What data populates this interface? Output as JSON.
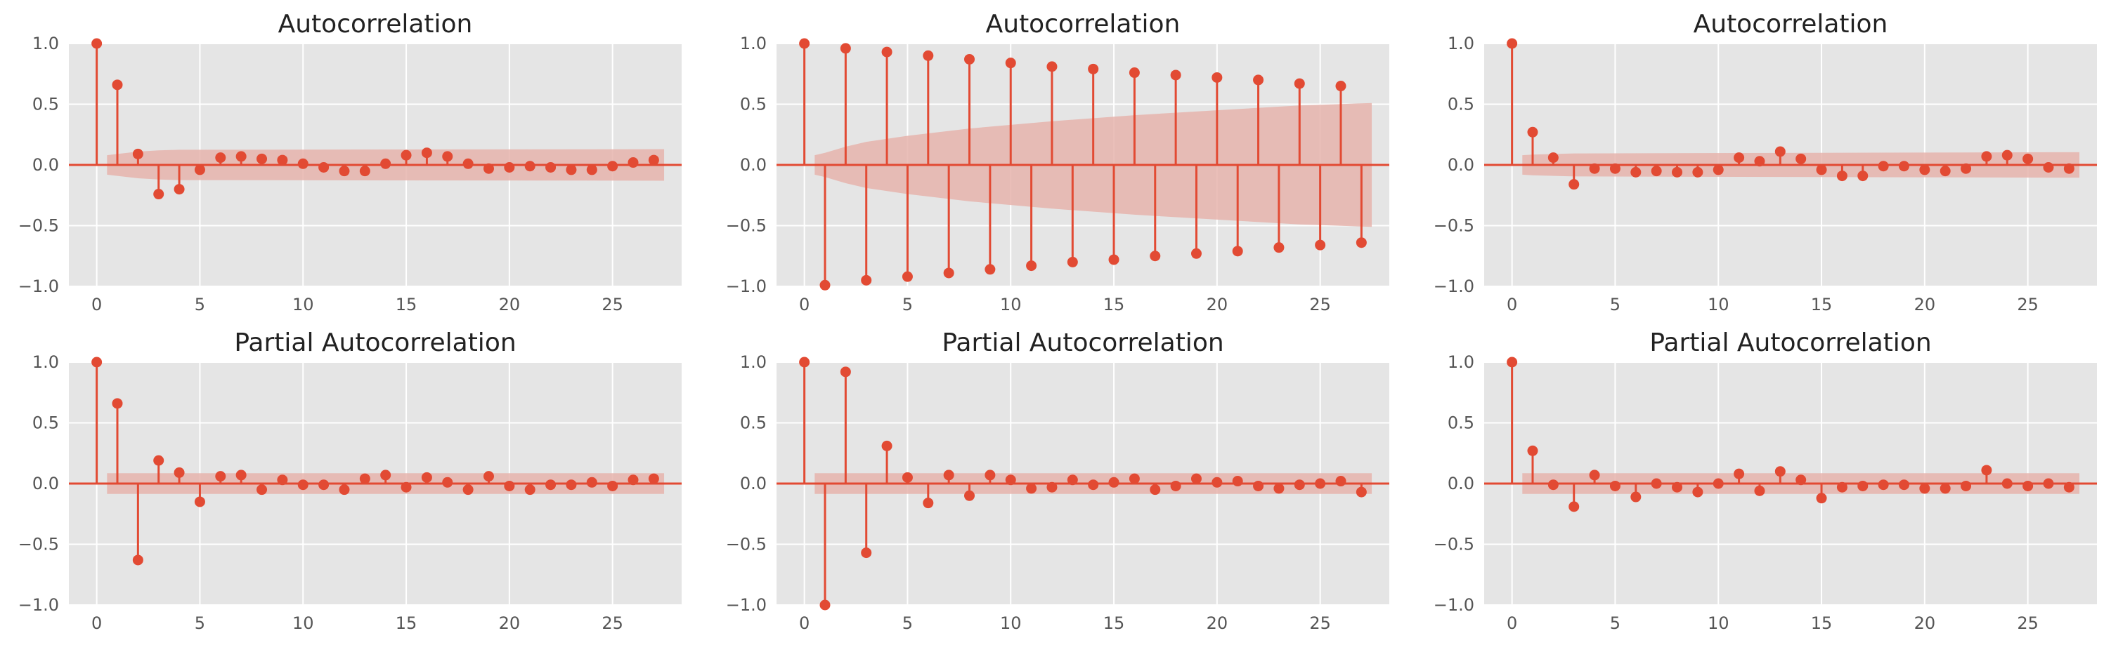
{
  "chart_data": [
    {
      "type": "stem",
      "title": "Autocorrelation",
      "xlabel": "",
      "ylabel": "",
      "xlim": [
        -1.35,
        28.35
      ],
      "ylim": [
        -1.0,
        1.0
      ],
      "xticks": [
        0,
        5,
        10,
        15,
        20,
        25
      ],
      "yticks": [
        -1.0,
        -0.5,
        0.0,
        0.5,
        1.0
      ],
      "ytick_labels": [
        "−1.0",
        "−0.5",
        "0.0",
        "0.5",
        "1.0"
      ],
      "grid": true,
      "lags": [
        0,
        1,
        2,
        3,
        4,
        5,
        6,
        7,
        8,
        9,
        10,
        11,
        12,
        13,
        14,
        15,
        16,
        17,
        18,
        19,
        20,
        21,
        22,
        23,
        24,
        25,
        26,
        27
      ],
      "values": [
        1.0,
        0.66,
        0.09,
        -0.24,
        -0.2,
        -0.04,
        0.06,
        0.07,
        0.05,
        0.04,
        0.01,
        -0.02,
        -0.05,
        -0.05,
        0.01,
        0.08,
        0.1,
        0.07,
        0.01,
        -0.03,
        -0.02,
        -0.01,
        -0.02,
        -0.04,
        -0.04,
        -0.01,
        0.02,
        0.04
      ],
      "confidence_band": {
        "lags": [
          0.5,
          1,
          2,
          3,
          4,
          27.5
        ],
        "upper": [
          0.08,
          0.09,
          0.11,
          0.12,
          0.125,
          0.13
        ]
      },
      "colors": {
        "stem": "#e24a33",
        "band": "#e6b4ad",
        "background": "#e5e5e5",
        "grid": "#ffffff",
        "zero_line": "#e24a33"
      }
    },
    {
      "type": "stem",
      "title": "Autocorrelation",
      "xlabel": "",
      "ylabel": "",
      "xlim": [
        -1.35,
        28.35
      ],
      "ylim": [
        -1.0,
        1.0
      ],
      "xticks": [
        0,
        5,
        10,
        15,
        20,
        25
      ],
      "yticks": [
        -1.0,
        -0.5,
        0.0,
        0.5,
        1.0
      ],
      "ytick_labels": [
        "−1.0",
        "−0.5",
        "0.0",
        "0.5",
        "1.0"
      ],
      "grid": true,
      "lags": [
        0,
        1,
        2,
        3,
        4,
        5,
        6,
        7,
        8,
        9,
        10,
        11,
        12,
        13,
        14,
        15,
        16,
        17,
        18,
        19,
        20,
        21,
        22,
        23,
        24,
        25,
        26,
        27
      ],
      "values": [
        1.0,
        -0.99,
        0.96,
        -0.95,
        0.93,
        -0.92,
        0.9,
        -0.89,
        0.87,
        -0.86,
        0.84,
        -0.83,
        0.81,
        -0.8,
        0.79,
        -0.78,
        0.76,
        -0.75,
        0.74,
        -0.73,
        0.72,
        -0.71,
        0.7,
        -0.68,
        0.67,
        -0.66,
        0.65,
        -0.64
      ],
      "confidence_band": {
        "lags": [
          0.5,
          1,
          2,
          3,
          5,
          8,
          12,
          16,
          20,
          24,
          27.5
        ],
        "upper": [
          0.08,
          0.1,
          0.15,
          0.19,
          0.24,
          0.3,
          0.36,
          0.41,
          0.45,
          0.49,
          0.51
        ]
      },
      "colors": {
        "stem": "#e24a33",
        "band": "#e6b4ad",
        "background": "#e5e5e5",
        "grid": "#ffffff",
        "zero_line": "#e24a33"
      }
    },
    {
      "type": "stem",
      "title": "Autocorrelation",
      "xlabel": "",
      "ylabel": "",
      "xlim": [
        -1.35,
        28.35
      ],
      "ylim": [
        -1.0,
        1.0
      ],
      "xticks": [
        0,
        5,
        10,
        15,
        20,
        25
      ],
      "yticks": [
        -1.0,
        -0.5,
        0.0,
        0.5,
        1.0
      ],
      "ytick_labels": [
        "−1.0",
        "−0.5",
        "0.0",
        "0.5",
        "1.0"
      ],
      "grid": true,
      "lags": [
        0,
        1,
        2,
        3,
        4,
        5,
        6,
        7,
        8,
        9,
        10,
        11,
        12,
        13,
        14,
        15,
        16,
        17,
        18,
        19,
        20,
        21,
        22,
        23,
        24,
        25,
        26,
        27
      ],
      "values": [
        1.0,
        0.27,
        0.06,
        -0.16,
        -0.03,
        -0.03,
        -0.06,
        -0.05,
        -0.06,
        -0.06,
        -0.04,
        0.06,
        0.03,
        0.11,
        0.05,
        -0.04,
        -0.09,
        -0.09,
        -0.01,
        -0.01,
        -0.04,
        -0.05,
        -0.03,
        0.07,
        0.08,
        0.05,
        -0.02,
        -0.03
      ],
      "confidence_band": {
        "lags": [
          0.5,
          1,
          3,
          27.5
        ],
        "upper": [
          0.08,
          0.085,
          0.095,
          0.105
        ]
      },
      "colors": {
        "stem": "#e24a33",
        "band": "#e6b4ad",
        "background": "#e5e5e5",
        "grid": "#ffffff",
        "zero_line": "#e24a33"
      }
    },
    {
      "type": "stem",
      "title": "Partial Autocorrelation",
      "xlabel": "",
      "ylabel": "",
      "xlim": [
        -1.35,
        28.35
      ],
      "ylim": [
        -1.0,
        1.0
      ],
      "xticks": [
        0,
        5,
        10,
        15,
        20,
        25
      ],
      "yticks": [
        -1.0,
        -0.5,
        0.0,
        0.5,
        1.0
      ],
      "ytick_labels": [
        "−1.0",
        "−0.5",
        "0.0",
        "0.5",
        "1.0"
      ],
      "grid": true,
      "lags": [
        0,
        1,
        2,
        3,
        4,
        5,
        6,
        7,
        8,
        9,
        10,
        11,
        12,
        13,
        14,
        15,
        16,
        17,
        18,
        19,
        20,
        21,
        22,
        23,
        24,
        25,
        26,
        27
      ],
      "values": [
        1.0,
        0.66,
        -0.63,
        0.19,
        0.09,
        -0.15,
        0.06,
        0.07,
        -0.05,
        0.03,
        -0.01,
        -0.01,
        -0.05,
        0.04,
        0.07,
        -0.03,
        0.05,
        0.01,
        -0.05,
        0.06,
        -0.02,
        -0.05,
        -0.01,
        -0.01,
        0.01,
        -0.02,
        0.03,
        0.04
      ],
      "confidence_band": {
        "lags": [
          0.5,
          27.5
        ],
        "upper": [
          0.085,
          0.085
        ]
      },
      "colors": {
        "stem": "#e24a33",
        "band": "#e6b4ad",
        "background": "#e5e5e5",
        "grid": "#ffffff",
        "zero_line": "#e24a33"
      }
    },
    {
      "type": "stem",
      "title": "Partial Autocorrelation",
      "xlabel": "",
      "ylabel": "",
      "xlim": [
        -1.35,
        28.35
      ],
      "ylim": [
        -1.0,
        1.0
      ],
      "xticks": [
        0,
        5,
        10,
        15,
        20,
        25
      ],
      "yticks": [
        -1.0,
        -0.5,
        0.0,
        0.5,
        1.0
      ],
      "ytick_labels": [
        "−1.0",
        "−0.5",
        "0.0",
        "0.5",
        "1.0"
      ],
      "grid": true,
      "lags": [
        0,
        1,
        2,
        3,
        4,
        5,
        6,
        7,
        8,
        9,
        10,
        11,
        12,
        13,
        14,
        15,
        16,
        17,
        18,
        19,
        20,
        21,
        22,
        23,
        24,
        25,
        26,
        27
      ],
      "values": [
        1.0,
        -1.0,
        0.92,
        -0.57,
        0.31,
        0.05,
        -0.16,
        0.07,
        -0.1,
        0.07,
        0.03,
        -0.04,
        -0.03,
        0.03,
        -0.01,
        0.01,
        0.04,
        -0.05,
        -0.02,
        0.04,
        0.01,
        0.02,
        -0.02,
        -0.04,
        -0.01,
        0.0,
        0.02,
        -0.07
      ],
      "confidence_band": {
        "lags": [
          0.5,
          27.5
        ],
        "upper": [
          0.085,
          0.085
        ]
      },
      "colors": {
        "stem": "#e24a33",
        "band": "#e6b4ad",
        "background": "#e5e5e5",
        "grid": "#ffffff",
        "zero_line": "#e24a33"
      }
    },
    {
      "type": "stem",
      "title": "Partial Autocorrelation",
      "xlabel": "",
      "ylabel": "",
      "xlim": [
        -1.35,
        28.35
      ],
      "ylim": [
        -1.0,
        1.0
      ],
      "xticks": [
        0,
        5,
        10,
        15,
        20,
        25
      ],
      "yticks": [
        -1.0,
        -0.5,
        0.0,
        0.5,
        1.0
      ],
      "ytick_labels": [
        "−1.0",
        "−0.5",
        "0.0",
        "0.5",
        "1.0"
      ],
      "grid": true,
      "lags": [
        0,
        1,
        2,
        3,
        4,
        5,
        6,
        7,
        8,
        9,
        10,
        11,
        12,
        13,
        14,
        15,
        16,
        17,
        18,
        19,
        20,
        21,
        22,
        23,
        24,
        25,
        26,
        27
      ],
      "values": [
        1.0,
        0.27,
        -0.01,
        -0.19,
        0.07,
        -0.02,
        -0.11,
        0.0,
        -0.03,
        -0.07,
        0.0,
        0.08,
        -0.06,
        0.1,
        0.03,
        -0.12,
        -0.03,
        -0.02,
        -0.01,
        -0.01,
        -0.04,
        -0.04,
        -0.02,
        0.11,
        0.0,
        -0.02,
        0.0,
        -0.03
      ],
      "confidence_band": {
        "lags": [
          0.5,
          27.5
        ],
        "upper": [
          0.085,
          0.085
        ]
      },
      "colors": {
        "stem": "#e24a33",
        "band": "#e6b4ad",
        "background": "#e5e5e5",
        "grid": "#ffffff",
        "zero_line": "#e24a33"
      }
    }
  ]
}
